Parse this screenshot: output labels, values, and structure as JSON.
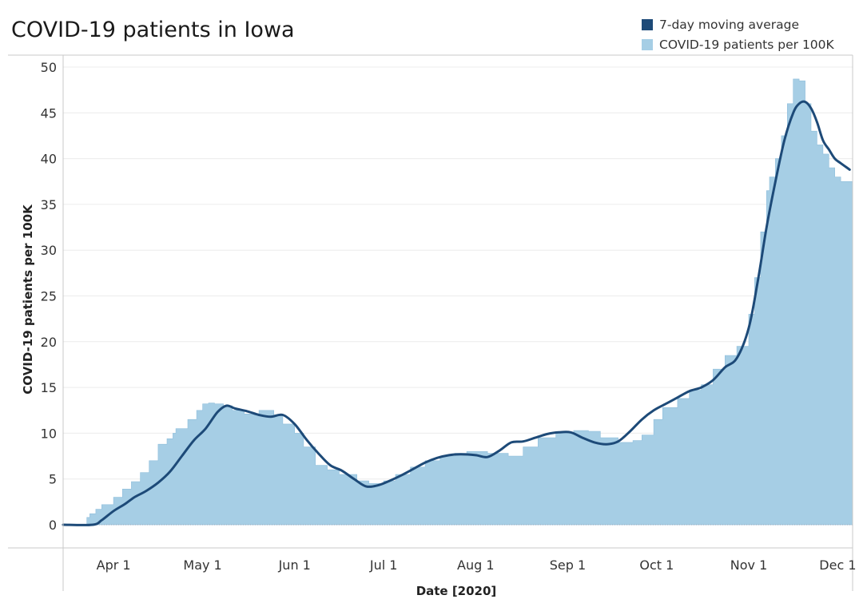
{
  "chart_data": {
    "type": "area",
    "title": "COVID-19 patients in Iowa",
    "xlabel": "Date [2020]",
    "ylabel": "COVID-19 patients per 100K",
    "ylim": [
      0,
      50
    ],
    "yticks": [
      0,
      5,
      10,
      15,
      20,
      25,
      30,
      35,
      40,
      45,
      50
    ],
    "xticks": [
      "Apr 1",
      "May 1",
      "Jun 1",
      "Jul 1",
      "Aug 1",
      "Sep 1",
      "Oct 1",
      "Nov 1",
      "Dec 1"
    ],
    "xtick_dates": [
      "2020-04-01",
      "2020-05-01",
      "2020-06-01",
      "2020-07-01",
      "2020-08-01",
      "2020-09-01",
      "2020-10-01",
      "2020-11-01",
      "2020-12-01"
    ],
    "grid": true,
    "legend_position": "top-right",
    "series": [
      {
        "name": "COVID-19 patients per 100K",
        "kind": "step-area",
        "color": "#a6cee5",
        "x": [
          "2020-03-15",
          "2020-03-23",
          "2020-03-24",
          "2020-03-26",
          "2020-03-28",
          "2020-04-01",
          "2020-04-04",
          "2020-04-07",
          "2020-04-10",
          "2020-04-13",
          "2020-04-16",
          "2020-04-19",
          "2020-04-21",
          "2020-04-22",
          "2020-04-26",
          "2020-04-29",
          "2020-05-01",
          "2020-05-03",
          "2020-05-05",
          "2020-05-08",
          "2020-05-11",
          "2020-05-15",
          "2020-05-20",
          "2020-05-25",
          "2020-05-28",
          "2020-06-01",
          "2020-06-04",
          "2020-06-08",
          "2020-06-12",
          "2020-06-16",
          "2020-06-22",
          "2020-06-26",
          "2020-07-01",
          "2020-07-05",
          "2020-07-10",
          "2020-07-15",
          "2020-07-20",
          "2020-07-25",
          "2020-07-29",
          "2020-08-05",
          "2020-08-12",
          "2020-08-17",
          "2020-08-22",
          "2020-08-28",
          "2020-09-03",
          "2020-09-08",
          "2020-09-12",
          "2020-09-18",
          "2020-09-23",
          "2020-09-26",
          "2020-09-30",
          "2020-10-03",
          "2020-10-08",
          "2020-10-12",
          "2020-10-16",
          "2020-10-20",
          "2020-10-24",
          "2020-10-28",
          "2020-11-01",
          "2020-11-03",
          "2020-11-05",
          "2020-11-07",
          "2020-11-08",
          "2020-11-10",
          "2020-11-12",
          "2020-11-14",
          "2020-11-16",
          "2020-11-18",
          "2020-11-20",
          "2020-11-22",
          "2020-11-24",
          "2020-11-26",
          "2020-11-28",
          "2020-11-30",
          "2020-12-02",
          "2020-12-03",
          "2020-12-04",
          "2020-12-06"
        ],
        "values": [
          0,
          0.8,
          1.2,
          1.7,
          2.2,
          3.0,
          3.9,
          4.7,
          5.7,
          7.0,
          8.8,
          9.4,
          10.0,
          10.5,
          11.5,
          12.5,
          13.2,
          13.3,
          13.2,
          13.0,
          12.5,
          12.1,
          12.5,
          12.0,
          11.0,
          10.0,
          8.5,
          6.5,
          6.0,
          5.5,
          4.8,
          4.5,
          4.8,
          5.5,
          6.3,
          7.0,
          7.5,
          7.8,
          8.0,
          7.8,
          7.5,
          8.5,
          9.5,
          10.0,
          10.3,
          10.2,
          9.5,
          9.0,
          9.2,
          9.8,
          11.5,
          12.8,
          13.8,
          14.7,
          15.3,
          17.0,
          18.5,
          19.5,
          23.0,
          27.0,
          32.0,
          36.5,
          38.0,
          40.0,
          42.5,
          46.0,
          48.7,
          48.5,
          46.0,
          43.0,
          41.5,
          40.5,
          39.0,
          38.0,
          37.5,
          37.5,
          37.5,
          37.5
        ]
      },
      {
        "name": "7-day moving average",
        "kind": "line",
        "color": "#1d4a78",
        "x": [
          "2020-03-15",
          "2020-03-25",
          "2020-03-28",
          "2020-04-01",
          "2020-04-05",
          "2020-04-08",
          "2020-04-12",
          "2020-04-16",
          "2020-04-20",
          "2020-04-24",
          "2020-04-28",
          "2020-05-02",
          "2020-05-06",
          "2020-05-09",
          "2020-05-12",
          "2020-05-16",
          "2020-05-20",
          "2020-05-24",
          "2020-05-28",
          "2020-06-01",
          "2020-06-05",
          "2020-06-09",
          "2020-06-13",
          "2020-06-17",
          "2020-06-21",
          "2020-06-25",
          "2020-06-29",
          "2020-07-03",
          "2020-07-07",
          "2020-07-11",
          "2020-07-15",
          "2020-07-19",
          "2020-07-23",
          "2020-07-27",
          "2020-08-01",
          "2020-08-05",
          "2020-08-09",
          "2020-08-13",
          "2020-08-17",
          "2020-08-21",
          "2020-08-25",
          "2020-08-29",
          "2020-09-02",
          "2020-09-06",
          "2020-09-10",
          "2020-09-14",
          "2020-09-18",
          "2020-09-22",
          "2020-09-26",
          "2020-09-30",
          "2020-10-04",
          "2020-10-08",
          "2020-10-12",
          "2020-10-16",
          "2020-10-20",
          "2020-10-24",
          "2020-10-28",
          "2020-11-01",
          "2020-11-04",
          "2020-11-07",
          "2020-11-10",
          "2020-11-13",
          "2020-11-16",
          "2020-11-18",
          "2020-11-20",
          "2020-11-22",
          "2020-11-24",
          "2020-11-26",
          "2020-11-28",
          "2020-11-30",
          "2020-12-02",
          "2020-12-05"
        ],
        "values": [
          0,
          0,
          0.5,
          1.5,
          2.3,
          3.0,
          3.7,
          4.6,
          5.8,
          7.5,
          9.2,
          10.5,
          12.3,
          13.0,
          12.7,
          12.4,
          12.0,
          11.8,
          12.0,
          11.0,
          9.3,
          7.8,
          6.5,
          5.9,
          5.0,
          4.2,
          4.3,
          4.8,
          5.4,
          6.1,
          6.8,
          7.3,
          7.6,
          7.7,
          7.6,
          7.4,
          8.1,
          9.0,
          9.1,
          9.5,
          9.9,
          10.1,
          10.1,
          9.5,
          9.0,
          8.8,
          9.1,
          10.2,
          11.5,
          12.5,
          13.2,
          13.9,
          14.6,
          15.0,
          15.8,
          17.2,
          18.2,
          21.5,
          26.5,
          32.5,
          37.5,
          42.0,
          45.0,
          46.0,
          46.2,
          45.5,
          44.0,
          42.0,
          41.0,
          40.0,
          39.5,
          38.8
        ]
      }
    ]
  }
}
